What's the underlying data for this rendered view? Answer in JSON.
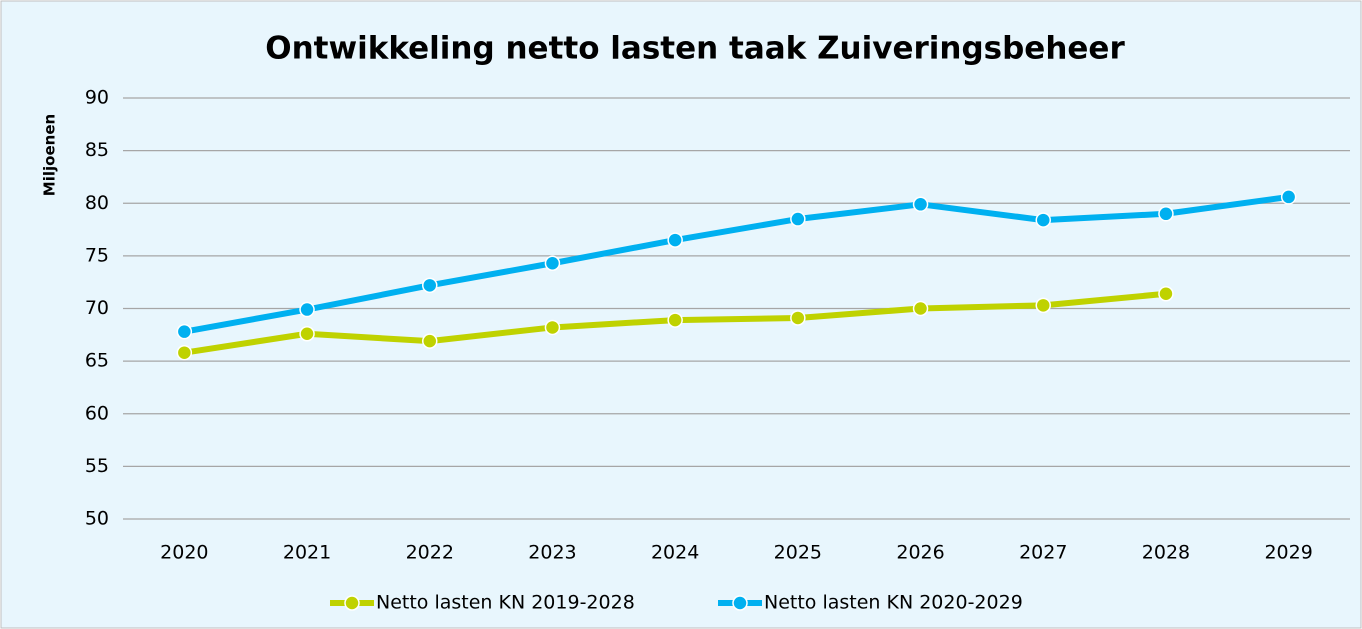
{
  "chart_data": {
    "type": "line",
    "title": "Ontwikkeling netto lasten taak Zuiveringsbeheer",
    "y_label": "Miljoenen",
    "categories": [
      "2020",
      "2021",
      "2022",
      "2023",
      "2024",
      "2025",
      "2026",
      "2027",
      "2028",
      "2029"
    ],
    "series": [
      {
        "name": "Netto lasten KN 2019-2028",
        "color": "#bfd200",
        "values": [
          65.8,
          67.6,
          66.9,
          68.2,
          68.9,
          69.1,
          70.0,
          70.3,
          71.4,
          null
        ]
      },
      {
        "name": "Netto lasten KN 2020-2029",
        "color": "#00b0f0",
        "values": [
          67.8,
          69.9,
          72.2,
          74.3,
          76.5,
          78.5,
          79.9,
          78.4,
          79.0,
          80.6
        ]
      }
    ],
    "ylim": [
      50,
      90
    ],
    "yticks": [
      50,
      55,
      60,
      65,
      70,
      75,
      80,
      85,
      90
    ],
    "grid": true,
    "legend": "bottom"
  }
}
